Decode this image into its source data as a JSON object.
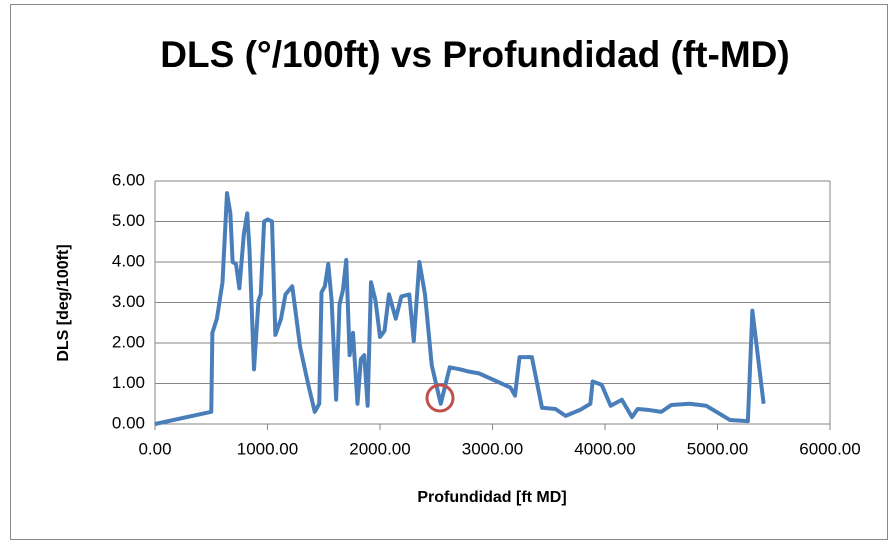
{
  "chart_data": {
    "type": "line",
    "title": "DLS (°/100ft) vs Profundidad (ft-MD)",
    "x_label": "Profundidad [ft MD]",
    "y_label": "DLS [deg/100ft]",
    "color": "#4a7ebb",
    "x": [
      0,
      500,
      510,
      550,
      600,
      640,
      670,
      690,
      720,
      750,
      790,
      820,
      840,
      880,
      920,
      940,
      970,
      1000,
      1040,
      1070,
      1120,
      1160,
      1220,
      1290,
      1360,
      1420,
      1460,
      1480,
      1510,
      1540,
      1570,
      1610,
      1640,
      1670,
      1700,
      1730,
      1760,
      1800,
      1830,
      1860,
      1890,
      1920,
      1960,
      2000,
      2040,
      2080,
      2140,
      2190,
      2260,
      2300,
      2350,
      2400,
      2460,
      2540,
      2620,
      2710,
      2780,
      2880,
      3160,
      3200,
      3240,
      3350,
      3440,
      3560,
      3650,
      3780,
      3870,
      3890,
      3970,
      4050,
      4150,
      4240,
      4290,
      4380,
      4500,
      4590,
      4750,
      4900,
      5110,
      5270,
      5310,
      5410
    ],
    "values": [
      0,
      0.3,
      2.25,
      2.6,
      3.5,
      5.7,
      5.2,
      4.0,
      3.95,
      3.35,
      4.7,
      5.2,
      4.3,
      1.35,
      3.05,
      3.2,
      5.0,
      5.05,
      5.0,
      2.2,
      2.6,
      3.2,
      3.4,
      1.9,
      1.0,
      0.3,
      0.5,
      3.25,
      3.4,
      3.95,
      3.05,
      0.6,
      2.95,
      3.3,
      4.05,
      1.7,
      2.25,
      0.5,
      1.6,
      1.7,
      0.45,
      3.5,
      3.05,
      2.15,
      2.3,
      3.2,
      2.6,
      3.15,
      3.2,
      2.05,
      4.0,
      3.2,
      1.45,
      0.5,
      1.4,
      1.35,
      1.3,
      1.25,
      0.9,
      0.7,
      1.65,
      1.65,
      0.4,
      0.37,
      0.2,
      0.35,
      0.5,
      1.05,
      0.97,
      0.45,
      0.6,
      0.17,
      0.37,
      0.35,
      0.3,
      0.47,
      0.5,
      0.45,
      0.1,
      0.07,
      2.8,
      0.5
    ],
    "xlim": [
      0,
      6000
    ],
    "xticks": [
      {
        "value": 0,
        "label": "0.00"
      },
      {
        "value": 1000,
        "label": "1000.00"
      },
      {
        "value": 2000,
        "label": "2000.00"
      },
      {
        "value": 3000,
        "label": "3000.00"
      },
      {
        "value": 4000,
        "label": "4000.00"
      },
      {
        "value": 5000,
        "label": "5000.00"
      },
      {
        "value": 6000,
        "label": "6000.00"
      }
    ],
    "ylim": [
      0,
      6
    ],
    "yticks": [
      {
        "value": 0,
        "label": "0.00"
      },
      {
        "value": 1,
        "label": "1.00"
      },
      {
        "value": 2,
        "label": "2.00"
      },
      {
        "value": 3,
        "label": "3.00"
      },
      {
        "value": 4,
        "label": "4.00"
      },
      {
        "value": 5,
        "label": "5.00"
      },
      {
        "value": 6,
        "label": "6.00"
      }
    ],
    "grid": true
  }
}
